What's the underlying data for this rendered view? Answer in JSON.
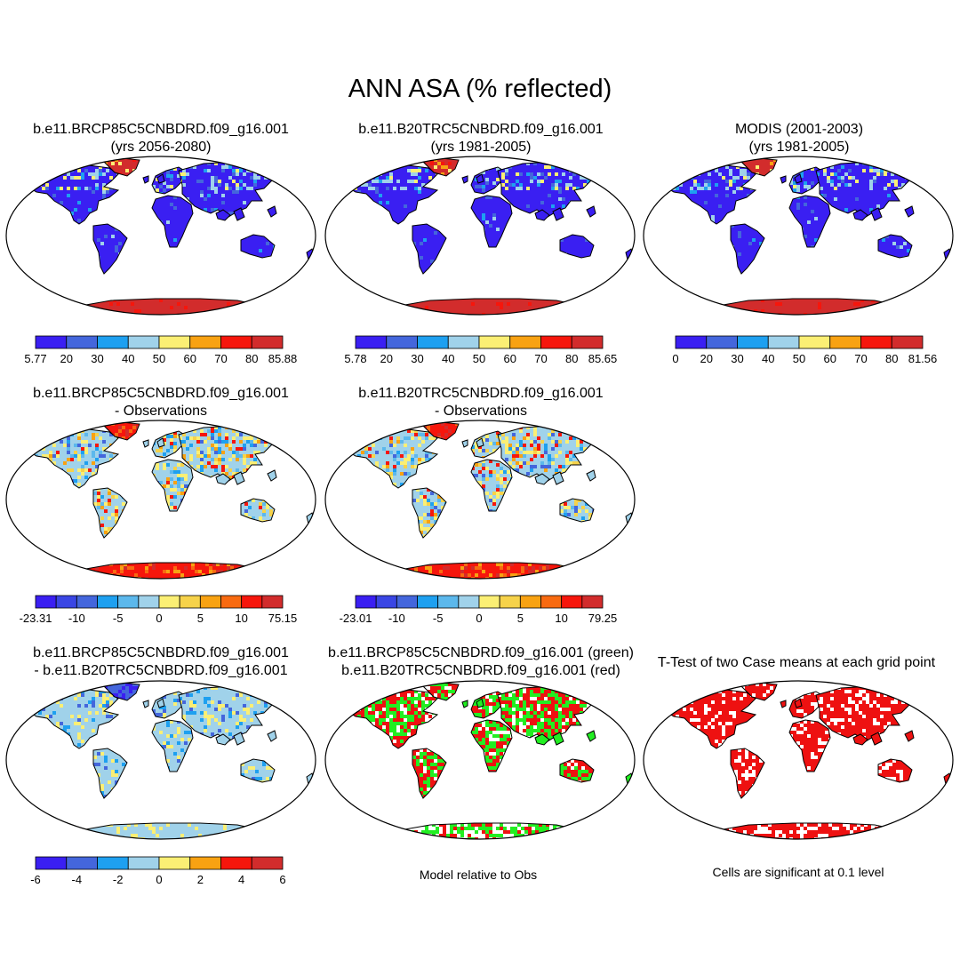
{
  "title": "ANN ASA (% reflected)",
  "colors": {
    "abs": [
      "#3a1ff2",
      "#4466dc",
      "#1ea0f0",
      "#a0d2ea",
      "#fbef74",
      "#f8a212",
      "#f6160c",
      "#d22c2c"
    ],
    "diff": [
      "#3a1ff2",
      "#3a46e4",
      "#4466dc",
      "#1ea0f0",
      "#5cb8ec",
      "#a0d2ea",
      "#fbef74",
      "#f6d24a",
      "#f8a212",
      "#f86a10",
      "#f6160c",
      "#d22c2c"
    ],
    "diff2": [
      "#3a1ff2",
      "#4466dc",
      "#1ea0f0",
      "#a0d2ea",
      "#fbef74",
      "#f8a212",
      "#f6160c",
      "#d22c2c"
    ],
    "green": "#22ee22",
    "red": "#ee1111",
    "ocean": "#ffffff"
  },
  "panels": [
    {
      "id": "p1",
      "title": [
        "b.e11.BRCP85C5CNBDRD.f09_g16.001",
        "(yrs 2056-2080)"
      ],
      "fill": "abs",
      "land": 0,
      "ant": 7,
      "greenl": 7,
      "blue": true,
      "colorbar": {
        "scale": "abs",
        "labels": [
          "5.77",
          "20",
          "30",
          "40",
          "50",
          "60",
          "70",
          "80",
          "85.88"
        ]
      }
    },
    {
      "id": "p2",
      "title": [
        "b.e11.B20TRC5CNBDRD.f09_g16.001",
        "(yrs 1981-2005)"
      ],
      "fill": "abs",
      "land": 0,
      "ant": 7,
      "greenl": 7,
      "blue": true,
      "colorbar": {
        "scale": "abs",
        "labels": [
          "5.78",
          "20",
          "30",
          "40",
          "50",
          "60",
          "70",
          "80",
          "85.65"
        ]
      }
    },
    {
      "id": "p3",
      "title": [
        "MODIS (2001-2003)",
        "(yrs 1981-2005)"
      ],
      "fill": "abs",
      "land": 0,
      "ant": 6,
      "greenl": 6,
      "blue": true,
      "colorbar": {
        "scale": "abs",
        "labels": [
          "0",
          "20",
          "30",
          "40",
          "50",
          "60",
          "70",
          "80",
          "81.56"
        ]
      }
    },
    {
      "id": "p4",
      "title": [
        "b.e11.BRCP85C5CNBDRD.f09_g16.001",
        "- Observations"
      ],
      "fill": "diff",
      "land": 5,
      "ant": 10,
      "greenl": 10,
      "colorbar": {
        "scale": "diff",
        "labels": [
          "-23.31",
          "-10",
          "-5",
          "0",
          "5",
          "10",
          "75.15"
        ]
      }
    },
    {
      "id": "p5",
      "title": [
        "b.e11.B20TRC5CNBDRD.f09_g16.001",
        "- Observations"
      ],
      "fill": "diff",
      "land": 5,
      "ant": 10,
      "greenl": 10,
      "colorbar": {
        "scale": "diff",
        "labels": [
          "-23.01",
          "-10",
          "-5",
          "0",
          "5",
          "10",
          "79.25"
        ]
      }
    },
    {
      "id": "p6",
      "title": [
        "b.e11.BRCP85C5CNBDRD.f09_g16.001",
        "- b.e11.B20TRC5CNBDRD.f09_g16.001"
      ],
      "fill": "diff2",
      "land": 3,
      "ant": 3,
      "greenl": 0,
      "colorbar": {
        "scale": "diff2",
        "labels": [
          "-6",
          "-4",
          "-2",
          "0",
          "2",
          "4",
          "6"
        ]
      }
    },
    {
      "id": "p7",
      "title": [
        "b.e11.BRCP85C5CNBDRD.f09_g16.001 (green)",
        "b.e11.B20TRC5CNBDRD.f09_g16.001 (red)"
      ],
      "fill": "greenred",
      "caption": "Model relative to Obs"
    },
    {
      "id": "p8",
      "title": [
        "T-Test of two Case means at each grid point"
      ],
      "fill": "redwhite",
      "caption": "Cells are significant at 0.1 level"
    }
  ]
}
